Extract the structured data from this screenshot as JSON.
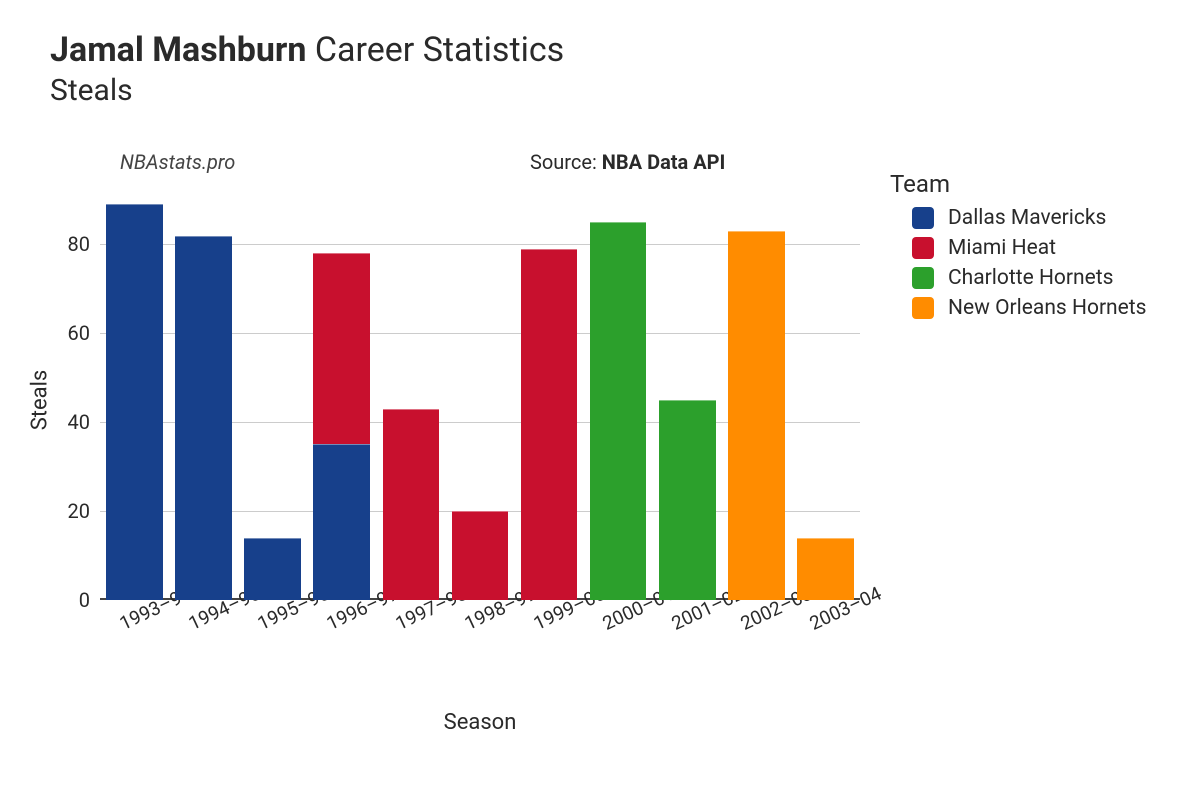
{
  "title": {
    "bold_part": "Jamal Mashburn",
    "normal_part": " Career Statistics",
    "subtitle": "Steals"
  },
  "watermark": "NBAstats.pro",
  "source": {
    "prefix": "Source: ",
    "name": "NBA Data API"
  },
  "chart": {
    "type": "bar-stacked",
    "y_axis": {
      "label": "Steals",
      "min": 0,
      "max": 90,
      "ticks": [
        0,
        20,
        40,
        60,
        80
      ]
    },
    "x_axis": {
      "label": "Season"
    },
    "grid_color": "#cccccc",
    "background_color": "#ffffff",
    "bar_width_ratio": 0.82,
    "tick_rotation_deg": -25,
    "teams": {
      "dal": {
        "name": "Dallas Mavericks",
        "color": "#17408b"
      },
      "mia": {
        "name": "Miami Heat",
        "color": "#c8102e"
      },
      "cha": {
        "name": "Charlotte Hornets",
        "color": "#2ca02c"
      },
      "noh": {
        "name": "New Orleans Hornets",
        "color": "#ff8c00"
      }
    },
    "seasons": [
      {
        "label": "1993–94",
        "segments": [
          {
            "team": "dal",
            "value": 89
          }
        ]
      },
      {
        "label": "1994–95",
        "segments": [
          {
            "team": "dal",
            "value": 82
          }
        ]
      },
      {
        "label": "1995–96",
        "segments": [
          {
            "team": "dal",
            "value": 14
          }
        ]
      },
      {
        "label": "1996–97",
        "segments": [
          {
            "team": "dal",
            "value": 35
          },
          {
            "team": "mia",
            "value": 43
          }
        ]
      },
      {
        "label": "1997–98",
        "segments": [
          {
            "team": "mia",
            "value": 43
          }
        ]
      },
      {
        "label": "1998–99",
        "segments": [
          {
            "team": "mia",
            "value": 20
          }
        ]
      },
      {
        "label": "1999–00",
        "segments": [
          {
            "team": "mia",
            "value": 79
          }
        ]
      },
      {
        "label": "2000–01",
        "segments": [
          {
            "team": "cha",
            "value": 85
          }
        ]
      },
      {
        "label": "2001–02",
        "segments": [
          {
            "team": "cha",
            "value": 45
          }
        ]
      },
      {
        "label": "2002–03",
        "segments": [
          {
            "team": "noh",
            "value": 83
          }
        ]
      },
      {
        "label": "2003–04",
        "segments": [
          {
            "team": "noh",
            "value": 14
          }
        ]
      }
    ]
  },
  "legend": {
    "title": "Team",
    "order": [
      "dal",
      "mia",
      "cha",
      "noh"
    ]
  }
}
